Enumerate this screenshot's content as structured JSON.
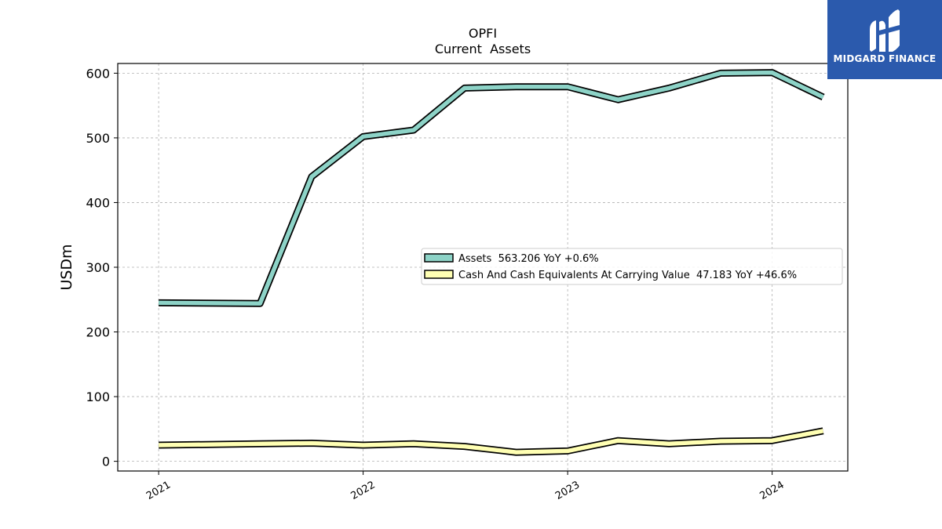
{
  "chart_data": {
    "type": "line",
    "title": "OPFI",
    "subtitle": "Current  Assets",
    "xlabel": "",
    "ylabel": "USDm",
    "x_ticks": [
      "2021",
      "2022",
      "2023",
      "2024"
    ],
    "y_ticks": [
      0,
      100,
      200,
      300,
      400,
      500,
      600
    ],
    "ylim": [
      -15,
      615
    ],
    "xlim": [
      "2020-10-20",
      "2024-05-15"
    ],
    "grid": true,
    "legend_position": "center-right",
    "x": [
      "2021-01-01",
      "2021-07-01",
      "2021-10-01",
      "2022-01-01",
      "2022-04-01",
      "2022-07-01",
      "2022-10-01",
      "2023-01-01",
      "2023-04-01",
      "2023-07-01",
      "2023-10-01",
      "2024-01-01",
      "2024-04-01"
    ],
    "series": [
      {
        "name": "Assets  563.206 YoY +0.6%",
        "color": "#8dd3c7",
        "values": [
          245,
          244,
          440,
          502,
          512,
          577,
          579,
          579,
          559,
          577,
          600,
          601,
          563
        ]
      },
      {
        "name": "Cash And Cash Equivalents At Carrying Value  47.183 YoY +46.6%",
        "color": "#ffffb3",
        "values": [
          25,
          27,
          28,
          25,
          27,
          23,
          14,
          16,
          32,
          27,
          31,
          32,
          47
        ]
      }
    ]
  },
  "logo": {
    "text": "MIDGARD FINANCE",
    "color": "#2b5aad"
  }
}
